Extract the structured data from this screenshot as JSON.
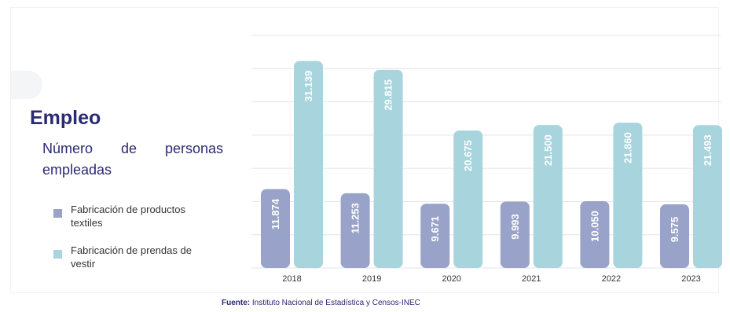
{
  "title": "Empleo",
  "subtitle": "Número de personas empleadas",
  "colors": {
    "title": "#2b2a73",
    "series_textiles": "#99a3c9",
    "series_vestir": "#a8d4de",
    "grid": "#e3e4e8",
    "bar_label": "#ffffff"
  },
  "chart_data": {
    "type": "bar",
    "categories": [
      "2018",
      "2019",
      "2020",
      "2021",
      "2022",
      "2023"
    ],
    "series": [
      {
        "name": "Fabricación de productos textiles",
        "values": [
          11874,
          11253,
          9671,
          9993,
          10050,
          9575
        ],
        "labels": [
          "11.874",
          "11.253",
          "9.671",
          "9.993",
          "10.050",
          "9.575"
        ]
      },
      {
        "name": "Fabricación de prendas de vestir",
        "values": [
          31139,
          29815,
          20675,
          21500,
          21860,
          21493
        ],
        "labels": [
          "31.139",
          "29.815",
          "20.675",
          "21.500",
          "21.860",
          "21.493"
        ]
      }
    ],
    "ylim": [
      0,
      35000
    ],
    "grid": true,
    "legend_position": "left"
  },
  "source": {
    "label": "Fuente:",
    "text": " Instituto Nacional de Estadística y Censos-INEC"
  }
}
